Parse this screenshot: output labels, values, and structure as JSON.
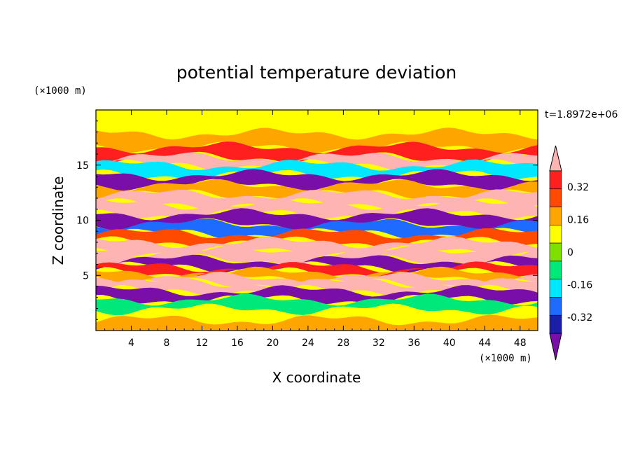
{
  "chart_data": {
    "type": "heatmap",
    "title": "potential temperature deviation",
    "xlabel": "X coordinate",
    "ylabel": "Z coordinate",
    "x_unit": "(×1000 m)",
    "y_unit": "(×1000 m)",
    "time_label": "t=1.8972e+06",
    "xlim": [
      0,
      50
    ],
    "ylim": [
      0,
      20
    ],
    "xticks": [
      4,
      8,
      12,
      16,
      20,
      24,
      28,
      32,
      36,
      40,
      44,
      48
    ],
    "yticks": [
      5,
      10,
      15
    ],
    "colorbar": {
      "levels": [
        -0.4,
        -0.32,
        -0.24,
        -0.16,
        -0.08,
        0,
        0.08,
        0.16,
        0.24,
        0.32,
        0.4
      ],
      "tick_labels": [
        "0.32",
        "0.16",
        "0",
        "-0.16",
        "-0.32"
      ],
      "tick_values": [
        0.32,
        0.16,
        0,
        -0.16,
        -0.32
      ],
      "colors": [
        "#7a0ea8",
        "#1b1fa8",
        "#1e6bff",
        "#00e8ff",
        "#00e87a",
        "#7fe000",
        "#ffff00",
        "#ffa500",
        "#ff4a00",
        "#ff1f1f",
        "#ffb4b4"
      ],
      "extend": "both"
    },
    "bands": [
      {
        "z": 18.5,
        "value": 0.04
      },
      {
        "z": 17.2,
        "value": 0.12
      },
      {
        "z": 16.0,
        "value": 0.3
      },
      {
        "z": 15.4,
        "value": 0.44
      },
      {
        "z": 14.6,
        "value": -0.2
      },
      {
        "z": 13.6,
        "value": -0.44
      },
      {
        "z": 12.8,
        "value": 0.1
      },
      {
        "z": 11.9,
        "value": 0.42
      },
      {
        "z": 11.0,
        "value": 0.44
      },
      {
        "z": 10.1,
        "value": -0.44
      },
      {
        "z": 9.2,
        "value": -0.3
      },
      {
        "z": 8.4,
        "value": 0.2
      },
      {
        "z": 7.6,
        "value": 0.44
      },
      {
        "z": 6.8,
        "value": 0.42
      },
      {
        "z": 6.0,
        "value": -0.44
      },
      {
        "z": 5.5,
        "value": 0.28
      },
      {
        "z": 5.0,
        "value": 0.14
      },
      {
        "z": 4.6,
        "value": 0.36
      },
      {
        "z": 4.0,
        "value": 0.44
      },
      {
        "z": 3.2,
        "value": -0.44
      },
      {
        "z": 2.4,
        "value": -0.1
      },
      {
        "z": 1.4,
        "value": 0.02
      },
      {
        "z": 0.5,
        "value": 0.1
      }
    ]
  }
}
